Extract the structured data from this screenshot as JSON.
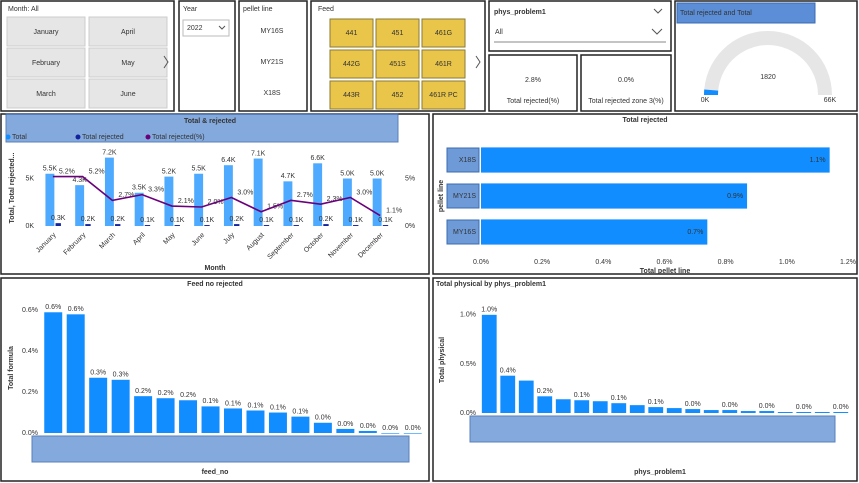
{
  "slicers": {
    "month": {
      "title": "Month: All",
      "items": [
        "January",
        "April",
        "February",
        "May",
        "March",
        "June"
      ]
    },
    "year": {
      "title": "Year",
      "value": "2022"
    },
    "pellet_line": {
      "title": "pellet line",
      "items": [
        "MY16S",
        "MY21S",
        "X18S"
      ]
    },
    "feed": {
      "title": "Feed",
      "items": [
        "441",
        "451",
        "461G",
        "442G",
        "451S",
        "461R",
        "443R",
        "452",
        "461R PC"
      ]
    },
    "phys_problem1": {
      "title": "phys_problem1",
      "value": "All"
    }
  },
  "cards": [
    {
      "value": "2.8%",
      "label": "Total rejected(%)"
    },
    {
      "value": "0.0%",
      "label": "Total rejected zone 3(%)"
    }
  ],
  "gauge": {
    "title": "Total rejected and Total",
    "value": 1820,
    "min": {
      "value": 0,
      "label": "0K"
    },
    "max": {
      "value": 66000,
      "label": "66K"
    },
    "color": "#118dff"
  },
  "chart_data": [
    {
      "type": "combo",
      "title": "Total & rejected",
      "categories": [
        "January",
        "February",
        "March",
        "April",
        "May",
        "June",
        "July",
        "August",
        "September",
        "October",
        "November",
        "December"
      ],
      "x_label": "Month",
      "y_label": "Total, Total rejected...",
      "ylim": [
        0,
        8000
      ],
      "yticks": [
        {
          "value": 0,
          "label": "0K"
        },
        {
          "value": 5000,
          "label": "5K"
        }
      ],
      "y2lim": [
        0,
        8
      ],
      "y2ticks": [
        {
          "value": 0,
          "label": "0%"
        },
        {
          "value": 5,
          "label": "5%"
        }
      ],
      "series": [
        {
          "name": "Total",
          "type": "bar",
          "color": "#118dff",
          "values": [
            5500,
            4300,
            7200,
            3500,
            5200,
            5500,
            6400,
            7100,
            4700,
            6600,
            5000,
            5000
          ],
          "value_labels": [
            "5.5K",
            "4.3K",
            "7.2K",
            "3.5K",
            "5.2K",
            "5.5K",
            "6.4K",
            "7.1K",
            "4.7K",
            "6.6K",
            "5.0K",
            "5.0K"
          ]
        },
        {
          "name": "Total rejected",
          "type": "bar",
          "color": "#12239e",
          "values": [
            300,
            200,
            200,
            100,
            100,
            100,
            200,
            100,
            100,
            200,
            100,
            100
          ],
          "value_labels": [
            "0.3K",
            "0.2K",
            "0.2K",
            "0.1K",
            "0.1K",
            "0.1K",
            "0.2K",
            "0.1K",
            "0.1K",
            "0.2K",
            "0.1K",
            "0.1K"
          ]
        },
        {
          "name": "Total rejected(%)",
          "type": "line",
          "axis": "y2",
          "color": "#6b007b",
          "values": [
            5.2,
            5.2,
            2.7,
            3.3,
            2.1,
            2.0,
            3.0,
            1.5,
            2.7,
            2.3,
            3.0,
            1.1
          ],
          "value_labels": [
            "5.2%",
            "5.2%",
            "2.7%",
            "3.3%",
            "2.1%",
            "2.0%",
            "3.0%",
            "1.5%",
            "2.7%",
            "2.3%",
            "3.0%",
            "1.1%"
          ]
        }
      ]
    },
    {
      "type": "hbar",
      "title": "Total rejected",
      "categories": [
        "X18S",
        "MY21S",
        "MY16S"
      ],
      "values": [
        1.14,
        0.87,
        0.74
      ],
      "value_labels": [
        "1.1%",
        "0.9%",
        "0.7%"
      ],
      "color": "#118dff",
      "xlim": [
        0,
        1.2
      ],
      "xticks": [
        {
          "value": 0,
          "label": "0.0%"
        },
        {
          "value": 0.2,
          "label": "0.2%"
        },
        {
          "value": 0.4,
          "label": "0.4%"
        },
        {
          "value": 0.6,
          "label": "0.6%"
        },
        {
          "value": 0.8,
          "label": "0.8%"
        },
        {
          "value": 1.0,
          "label": "1.0%"
        },
        {
          "value": 1.2,
          "label": "1.2%"
        }
      ],
      "x_label": "Total pellet line",
      "y_label": "pellet line"
    },
    {
      "type": "bar",
      "title": "Feed no rejected",
      "categories": [
        null,
        null,
        null,
        null,
        null,
        null,
        null,
        null,
        null,
        null,
        null,
        null,
        null,
        null,
        null,
        null,
        null
      ],
      "values": [
        0.59,
        0.58,
        0.27,
        0.26,
        0.18,
        0.17,
        0.16,
        0.13,
        0.12,
        0.11,
        0.1,
        0.08,
        0.05,
        0.02,
        0.01,
        0.0,
        0.0
      ],
      "value_labels": [
        "0.6%",
        "0.6%",
        "0.3%",
        "0.3%",
        "0.2%",
        "0.2%",
        "0.2%",
        "0.1%",
        "0.1%",
        "0.1%",
        "0.1%",
        "0.1%",
        "0.0%",
        "0.0%",
        "0.0%",
        "0.0%",
        "0.0%"
      ],
      "color": "#118dff",
      "ylim": [
        0,
        0.65
      ],
      "yticks": [
        {
          "value": 0,
          "label": "0.0%"
        },
        {
          "value": 0.2,
          "label": "0.2%"
        },
        {
          "value": 0.4,
          "label": "0.4%"
        },
        {
          "value": 0.6,
          "label": "0.6%"
        }
      ],
      "x_label": "feed_no",
      "y_label": "Total formula"
    },
    {
      "type": "bar",
      "title": "Total physical by phys_problem1",
      "categories": [
        null,
        null,
        null,
        null,
        null,
        null,
        null,
        null,
        null,
        null,
        null,
        null,
        null,
        null,
        null,
        null,
        null,
        null,
        null,
        null
      ],
      "values": [
        1.0,
        0.38,
        0.33,
        0.17,
        0.14,
        0.13,
        0.12,
        0.1,
        0.08,
        0.06,
        0.05,
        0.04,
        0.03,
        0.03,
        0.02,
        0.02,
        0.01,
        0.01,
        0.01,
        0.01
      ],
      "value_labels": [
        "1.0%",
        "0.4%",
        null,
        "0.2%",
        null,
        "0.1%",
        null,
        "0.1%",
        null,
        "0.1%",
        null,
        "0.0%",
        null,
        "0.0%",
        null,
        "0.0%",
        null,
        "0.0%",
        null,
        "0.0%"
      ],
      "color": "#118dff",
      "ylim": [
        0,
        1.1
      ],
      "yticks": [
        {
          "value": 0,
          "label": "0.0%"
        },
        {
          "value": 0.5,
          "label": "0.5%"
        },
        {
          "value": 1.0,
          "label": "1.0%"
        }
      ],
      "x_label": "phys_problem1",
      "y_label": "Total physical"
    }
  ]
}
